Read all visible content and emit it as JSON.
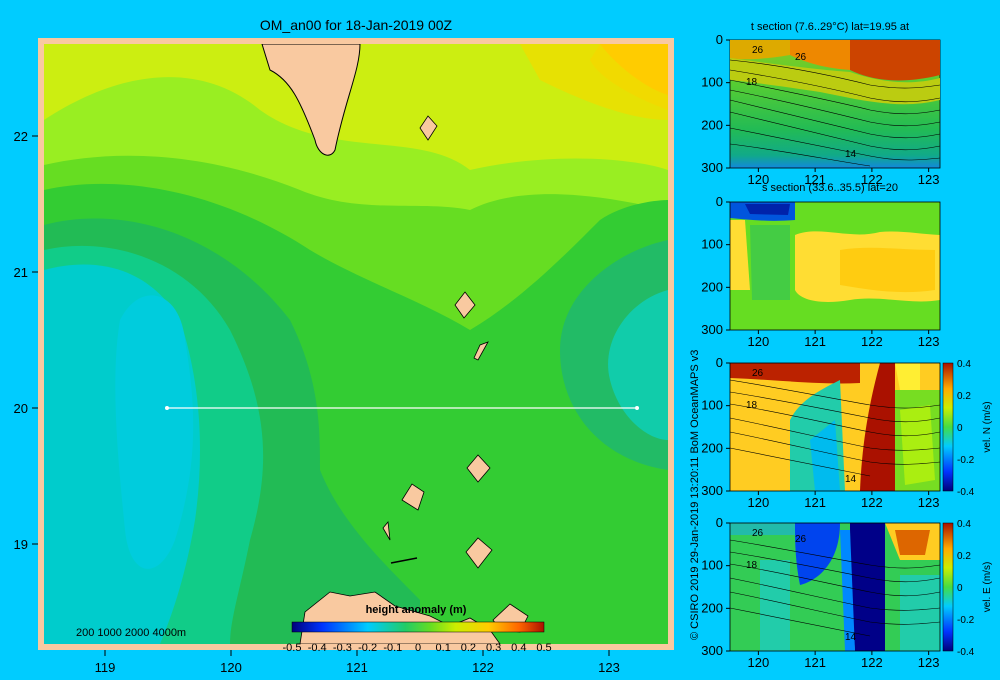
{
  "page": {
    "background": "#00ccff",
    "credit": "© CSIRO 2019   29-Jan-2019 13:20:11 BoM OceanMAPS v3"
  },
  "map": {
    "title": "OM_an00 for 18-Jan-2019 00Z",
    "lon_ticks": [
      "119",
      "120",
      "121",
      "122",
      "123"
    ],
    "lat_ticks": [
      "22",
      "21",
      "20",
      "19"
    ],
    "depth_legend": "200  1000  2000  4000m",
    "colorbar_title": "height anomaly (m)",
    "colorbar_ticks": [
      "-0.5",
      "-0.4",
      "-0.3",
      "-0.2",
      "-0.1",
      "0",
      "0.1",
      "0.2",
      "0.3",
      "0.4",
      "0.5"
    ],
    "land_color": "#f9c9a0",
    "section_line_color": "#ffffff"
  },
  "chart_data": [
    {
      "type": "heatmap",
      "title": "OM_an00 for 18-Jan-2019 00Z",
      "variable": "height anomaly (m)",
      "xlim": [
        118.5,
        123.5
      ],
      "ylim": [
        18.3,
        22.65
      ],
      "colorbar_range": [
        -0.5,
        0.5
      ],
      "section_line": {
        "lat": 20,
        "lon_start": 119.5,
        "lon_end": 123.2
      },
      "field_description": "sea surface height anomaly, mostly 0 to 0.3 m; low (~-0.05) west of 120E near 20N, high (~0.3) in NE corner"
    },
    {
      "type": "heatmap",
      "title": "t section (7.6..29°C) lat=19.95 at",
      "xlim": [
        119.5,
        123.2
      ],
      "ylim": [
        300,
        0
      ],
      "x_ticks": [
        "120",
        "121",
        "122",
        "123"
      ],
      "y_ticks": [
        "0",
        "100",
        "200",
        "300"
      ],
      "contour_labels": [
        "26",
        "26",
        "18",
        "14"
      ]
    },
    {
      "type": "heatmap",
      "title": "s section (33.6..35.5) lat=20",
      "xlim": [
        119.5,
        123.2
      ],
      "ylim": [
        300,
        0
      ],
      "x_ticks": [
        "120",
        "121",
        "122",
        "123"
      ],
      "y_ticks": [
        "0",
        "100",
        "200",
        "300"
      ]
    },
    {
      "type": "heatmap",
      "title": "",
      "xlim": [
        119.5,
        123.2
      ],
      "ylim": [
        300,
        0
      ],
      "x_ticks": [
        "120",
        "121",
        "122",
        "123"
      ],
      "y_ticks": [
        "0",
        "100",
        "200",
        "300"
      ],
      "contour_labels": [
        "26",
        "18",
        "14"
      ],
      "colorbar_label": "vel. N (m/s)",
      "colorbar_range": [
        -0.4,
        0.4
      ],
      "colorbar_ticks": [
        "0.4",
        "0.2",
        "0",
        "-0.2",
        "-0.4"
      ]
    },
    {
      "type": "heatmap",
      "title": "",
      "xlim": [
        119.5,
        123.2
      ],
      "ylim": [
        300,
        0
      ],
      "x_ticks": [
        "120",
        "121",
        "122",
        "123"
      ],
      "y_ticks": [
        "0",
        "100",
        "200",
        "300"
      ],
      "contour_labels": [
        "26",
        "26",
        "18",
        "14"
      ],
      "colorbar_label": "vel. E (m/s)",
      "colorbar_range": [
        -0.4,
        0.4
      ],
      "colorbar_ticks": [
        "0.4",
        "0.2",
        "0",
        "-0.2",
        "-0.4"
      ]
    }
  ]
}
